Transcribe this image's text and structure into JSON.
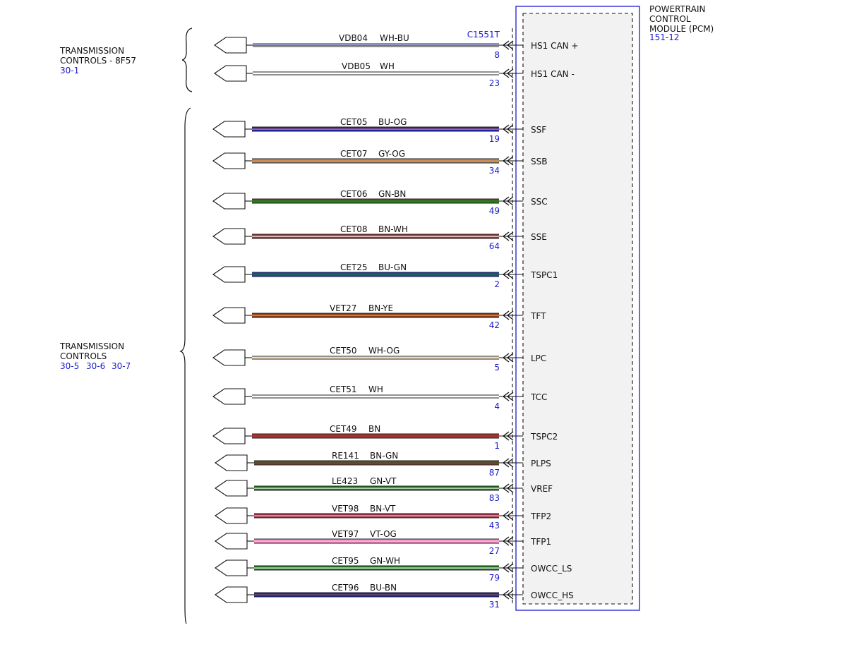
{
  "module": {
    "title_lines": [
      "POWERTRAIN",
      "CONTROL",
      "MODULE (PCM)"
    ],
    "ref": "151-12",
    "connector": "C1551T",
    "border_color": "#2b2bd6"
  },
  "groups": [
    {
      "name_lines": [
        "TRANSMISSION",
        "CONTROLS - 8F57"
      ],
      "refs": [
        "30-1"
      ]
    },
    {
      "name_lines": [
        "TRANSMISSION",
        "CONTROLS"
      ],
      "refs": [
        "30-5",
        "30-6",
        "30-7"
      ]
    }
  ],
  "wires": [
    {
      "circuit": "VDB04",
      "color_code": "WH-BU",
      "pin": "8",
      "signal": "HS1 CAN +",
      "colors": [
        "#ffffff",
        "#2a2ad0"
      ],
      "style": "thin"
    },
    {
      "circuit": "VDB05",
      "color_code": "WH",
      "pin": "23",
      "signal": "HS1 CAN -",
      "colors": [
        "#ffffff"
      ],
      "style": "thin"
    },
    {
      "circuit": "CET05",
      "color_code": "BU-OG",
      "pin": "19",
      "signal": "SSF",
      "colors": [
        "#2222bb",
        "#ff8a1a"
      ],
      "style": "thick"
    },
    {
      "circuit": "CET07",
      "color_code": "GY-OG",
      "pin": "34",
      "signal": "SSB",
      "colors": [
        "#9a8f84",
        "#ff8a1a"
      ],
      "style": "thick"
    },
    {
      "circuit": "CET06",
      "color_code": "GN-BN",
      "pin": "49",
      "signal": "SSC",
      "colors": [
        "#1f7a1f",
        "#8a4a2a"
      ],
      "style": "thick"
    },
    {
      "circuit": "CET08",
      "color_code": "BN-WH",
      "pin": "64",
      "signal": "SSE",
      "colors": [
        "#a03030",
        "#ffffff"
      ],
      "style": "thick"
    },
    {
      "circuit": "CET25",
      "color_code": "BU-GN",
      "pin": "2",
      "signal": "TSPC1",
      "colors": [
        "#1d3ad0",
        "#1f7a1f"
      ],
      "style": "thick"
    },
    {
      "circuit": "VET27",
      "color_code": "BN-YE",
      "pin": "42",
      "signal": "TFT",
      "colors": [
        "#8a3a1a",
        "#ffb000"
      ],
      "style": "thick"
    },
    {
      "circuit": "CET50",
      "color_code": "WH-OG",
      "pin": "5",
      "signal": "LPC",
      "colors": [
        "#ffffff",
        "#ffb347"
      ],
      "style": "thin"
    },
    {
      "circuit": "CET51",
      "color_code": "WH",
      "pin": "4",
      "signal": "TCC",
      "colors": [
        "#ffffff"
      ],
      "style": "thin"
    },
    {
      "circuit": "CET49",
      "color_code": "BN",
      "pin": "1",
      "signal": "TSPC2",
      "colors": [
        "#a83232"
      ],
      "style": "thick"
    },
    {
      "circuit": "RE141",
      "color_code": "BN-GN",
      "pin": "87",
      "signal": "PLPS",
      "colors": [
        "#7a4030",
        "#3a5a2a"
      ],
      "style": "thick"
    },
    {
      "circuit": "LE423",
      "color_code": "GN-VT",
      "pin": "83",
      "signal": "VREF",
      "colors": [
        "#1f7a1f",
        "#e8f0e0"
      ],
      "style": "thick"
    },
    {
      "circuit": "VET98",
      "color_code": "BN-VT",
      "pin": "43",
      "signal": "TFP2",
      "colors": [
        "#a03040",
        "#ffd0e0"
      ],
      "style": "thick"
    },
    {
      "circuit": "VET97",
      "color_code": "VT-OG",
      "pin": "27",
      "signal": "TFP1",
      "colors": [
        "#f08ac0",
        "#ffc0e0"
      ],
      "style": "thick"
    },
    {
      "circuit": "CET95",
      "color_code": "GN-WH",
      "pin": "79",
      "signal": "OWCC_LS",
      "colors": [
        "#1f7a1f",
        "#ffffff"
      ],
      "style": "thick"
    },
    {
      "circuit": "CET96",
      "color_code": "BU-BN",
      "pin": "31",
      "signal": "OWCC_HS",
      "colors": [
        "#2222aa",
        "#8a5a3a"
      ],
      "style": "thick"
    }
  ]
}
